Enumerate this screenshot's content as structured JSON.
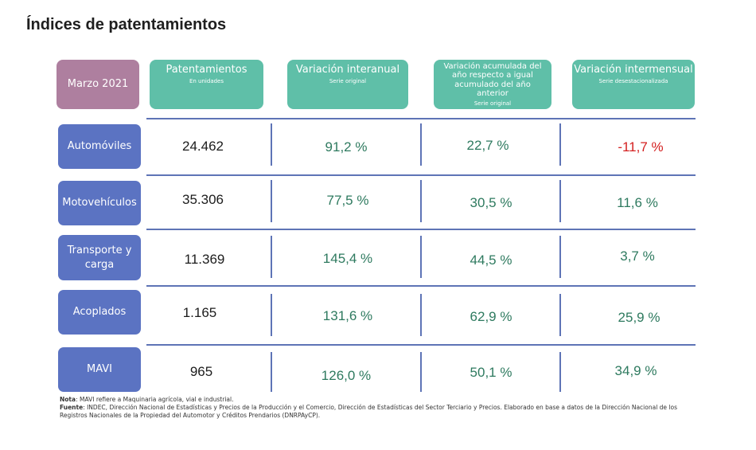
{
  "page": {
    "title": "Índices de patentamientos"
  },
  "header": {
    "period": "Marzo 2021",
    "columns": [
      {
        "title": "Patentamientos",
        "subtitle": "En unidades"
      },
      {
        "title": "Variación interanual",
        "subtitle": "Serie original"
      },
      {
        "title": "Variación acumulada del año respecto a igual acumulado del año anterior",
        "subtitle": "Serie original"
      },
      {
        "title": "Variación intermensual",
        "subtitle": "Serie desestacionalizada"
      }
    ]
  },
  "rows": [
    {
      "label": "Automóviles",
      "units": "24.462",
      "interanual": "91,2 %",
      "acumulada": "22,7 %",
      "intermensual": "-11,7 %"
    },
    {
      "label": "Motovehículos",
      "units": "35.306",
      "interanual": "77,5 %",
      "acumulada": "30,5 %",
      "intermensual": "11,6 %"
    },
    {
      "label": "Transporte y carga",
      "units": "11.369",
      "interanual": "145,4 %",
      "acumulada": "44,5 %",
      "intermensual": "3,7 %"
    },
    {
      "label": "Acoplados",
      "units": "1.165",
      "interanual": "131,6 %",
      "acumulada": "62,9 %",
      "intermensual": "25,9 %"
    },
    {
      "label": "MAVI",
      "units": "965",
      "interanual": "126,0 %",
      "acumulada": "50,1 %",
      "intermensual": "34,9 %"
    }
  ],
  "notes": {
    "nota_label": "Nota",
    "nota_text": ": MAVI refiere a Maquinaria agrícola, vial e industrial.",
    "fuente_label": "Fuente",
    "fuente_text": ": INDEC, Dirección Nacional de Estadísticas y Precios de la Producción y el Comercio, Dirección de Estadísticas del Sector Terciario y Precios. Elaborado en base a datos de la Dirección Nacional de los Registros Nacionales de la Propiedad del Automotor y Créditos Prendarios (DNRPAyCP)."
  },
  "colors": {
    "header_teal": "#5fbfa8",
    "period_mauve": "#ae7f9f",
    "row_label_blue": "#5b73c2",
    "lines": "#5e74b6",
    "pct_green": "#2e7a5f",
    "negative_red": "#d42020"
  }
}
